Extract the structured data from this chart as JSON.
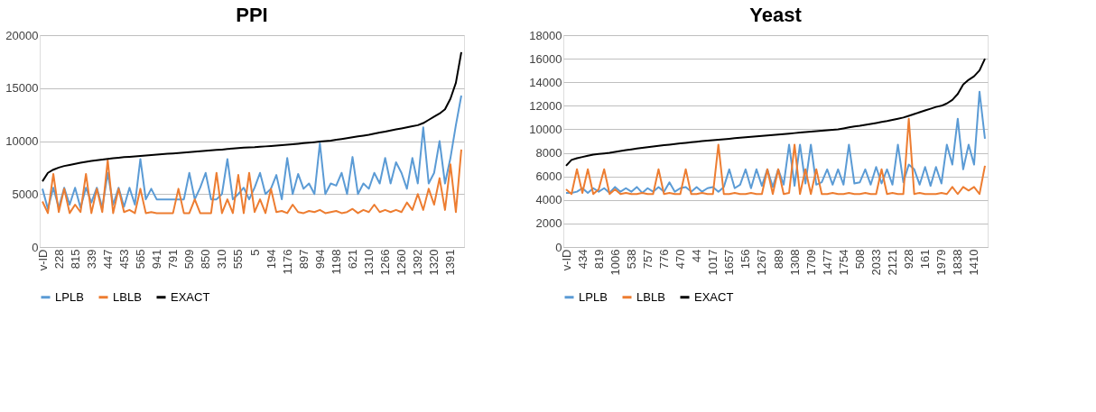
{
  "chart_data": [
    {
      "type": "line",
      "title": "PPI",
      "ylim": [
        0,
        20000
      ],
      "yticks": [
        0,
        5000,
        10000,
        15000,
        20000
      ],
      "grid": "y",
      "legend": "bottom",
      "categories": [
        "v-ID",
        null,
        null,
        "228",
        null,
        null,
        "815",
        null,
        null,
        "339",
        null,
        null,
        "447",
        null,
        null,
        "453",
        null,
        null,
        "565",
        null,
        null,
        "941",
        null,
        null,
        "791",
        null,
        null,
        "509",
        null,
        null,
        "850",
        null,
        null,
        "310",
        null,
        null,
        "555",
        null,
        null,
        "5",
        null,
        null,
        "194",
        null,
        null,
        "1176",
        null,
        null,
        "897",
        null,
        null,
        "994",
        null,
        null,
        "1198",
        null,
        null,
        "621",
        null,
        null,
        "1310",
        null,
        null,
        "1266",
        null,
        null,
        "1260",
        null,
        null,
        "1392",
        null,
        null,
        "1320",
        null,
        null,
        "1391",
        null,
        null
      ],
      "series": [
        {
          "name": "LPLB",
          "color": "#5b9bd5",
          "values": [
            5500,
            3600,
            5600,
            3700,
            5600,
            4000,
            5600,
            3700,
            5600,
            4200,
            5600,
            3700,
            7000,
            4000,
            5600,
            3800,
            5600,
            4000,
            8300,
            4500,
            5500,
            4500,
            4500,
            4500,
            4500,
            4500,
            4500,
            7000,
            4500,
            5600,
            7000,
            4500,
            4500,
            5000,
            8300,
            4500,
            5000,
            5600,
            4500,
            5600,
            7000,
            5000,
            5500,
            6800,
            4500,
            8400,
            5000,
            6900,
            5500,
            6000,
            5000,
            9800,
            5000,
            6000,
            5800,
            7000,
            5000,
            8500,
            5000,
            6000,
            5500,
            7000,
            6000,
            8400,
            6000,
            8000,
            7000,
            5500,
            8400,
            6000,
            11300,
            6000,
            7000,
            10000,
            6000,
            8400,
            11500,
            14300
          ]
        },
        {
          "name": "LBLB",
          "color": "#ed7d31",
          "values": [
            4300,
            3200,
            6900,
            3300,
            5500,
            3200,
            4000,
            3300,
            6900,
            3200,
            5500,
            3300,
            8200,
            3200,
            5500,
            3300,
            3500,
            3200,
            5500,
            3200,
            3300,
            3200,
            3200,
            3200,
            3200,
            5500,
            3200,
            3200,
            4500,
            3200,
            3200,
            3200,
            7000,
            3200,
            4500,
            3200,
            6800,
            3200,
            7000,
            3300,
            4500,
            3200,
            5500,
            3300,
            3400,
            3200,
            4000,
            3300,
            3200,
            3400,
            3300,
            3500,
            3200,
            3300,
            3400,
            3200,
            3300,
            3600,
            3200,
            3500,
            3300,
            4000,
            3300,
            3500,
            3300,
            3500,
            3300,
            4200,
            3500,
            5000,
            3500,
            5500,
            4000,
            6500,
            3500,
            7800,
            3300,
            9200
          ]
        },
        {
          "name": "EXACT",
          "color": "#000000",
          "values": [
            6200,
            7000,
            7300,
            7500,
            7650,
            7750,
            7850,
            7950,
            8050,
            8120,
            8200,
            8260,
            8320,
            8380,
            8430,
            8480,
            8520,
            8560,
            8600,
            8640,
            8680,
            8720,
            8760,
            8800,
            8840,
            8880,
            8920,
            8960,
            9000,
            9040,
            9080,
            9120,
            9160,
            9200,
            9250,
            9300,
            9350,
            9380,
            9400,
            9420,
            9460,
            9500,
            9540,
            9580,
            9620,
            9660,
            9700,
            9750,
            9800,
            9850,
            9900,
            9950,
            10000,
            10050,
            10120,
            10200,
            10280,
            10360,
            10440,
            10520,
            10600,
            10700,
            10800,
            10900,
            11000,
            11100,
            11200,
            11300,
            11400,
            11500,
            11700,
            12000,
            12300,
            12600,
            13000,
            14000,
            15500,
            18400
          ]
        }
      ]
    },
    {
      "type": "line",
      "title": "Yeast",
      "ylim": [
        0,
        18000
      ],
      "yticks": [
        0,
        2000,
        4000,
        6000,
        8000,
        10000,
        12000,
        14000,
        16000,
        18000
      ],
      "grid": "y",
      "legend": "bottom",
      "categories": [
        "v-ID",
        null,
        null,
        "434",
        null,
        null,
        "819",
        null,
        null,
        "1006",
        null,
        null,
        "538",
        null,
        null,
        "757",
        null,
        null,
        "776",
        null,
        null,
        "470",
        null,
        null,
        "44",
        null,
        null,
        "1017",
        null,
        null,
        "1657",
        null,
        null,
        "156",
        null,
        null,
        "1267",
        null,
        null,
        "889",
        null,
        null,
        "1308",
        null,
        null,
        "1709",
        null,
        null,
        "1477",
        null,
        null,
        "1754",
        null,
        null,
        "508",
        null,
        null,
        "2033",
        null,
        null,
        "2121",
        null,
        null,
        "928",
        null,
        null,
        "161",
        null,
        null,
        "1979",
        null,
        null,
        "1838",
        null,
        null,
        "1410",
        null,
        null
      ],
      "series": [
        {
          "name": "LPLB",
          "color": "#5b9bd5",
          "values": [
            4600,
            4600,
            4700,
            5000,
            4600,
            5000,
            4700,
            5000,
            4600,
            5100,
            4700,
            5000,
            4700,
            5100,
            4600,
            5000,
            4700,
            5100,
            4700,
            5500,
            4700,
            5000,
            5100,
            4700,
            5100,
            4700,
            5000,
            5100,
            4700,
            5100,
            6600,
            5000,
            5300,
            6600,
            5000,
            6600,
            5200,
            6600,
            5100,
            6600,
            5300,
            8700,
            5200,
            8700,
            5400,
            8700,
            5300,
            5500,
            6600,
            5300,
            6600,
            5300,
            8700,
            5400,
            5500,
            6600,
            5300,
            6800,
            5400,
            6600,
            5300,
            8700,
            5500,
            7000,
            6600,
            5300,
            6800,
            5200,
            6800,
            5400,
            8700,
            7000,
            10900,
            6600,
            8700,
            7000,
            13200,
            9200
          ]
        },
        {
          "name": "LBLB",
          "color": "#ed7d31",
          "values": [
            4900,
            4500,
            6600,
            4600,
            6600,
            4500,
            4900,
            6600,
            4500,
            4900,
            4500,
            4600,
            4500,
            4500,
            4600,
            4500,
            4500,
            6600,
            4500,
            4600,
            4500,
            4500,
            6600,
            4500,
            4500,
            4600,
            4500,
            4500,
            8700,
            4500,
            4500,
            4600,
            4500,
            4500,
            4600,
            4500,
            4500,
            6600,
            4500,
            6600,
            4500,
            4600,
            8700,
            4500,
            6600,
            4500,
            6600,
            4500,
            4500,
            4600,
            4500,
            4500,
            4600,
            4500,
            4500,
            4600,
            4500,
            4500,
            6600,
            4500,
            4600,
            4500,
            4500,
            10900,
            4500,
            4600,
            4500,
            4500,
            4500,
            4600,
            4500,
            5100,
            4500,
            5100,
            4800,
            5100,
            4500,
            6900
          ]
        },
        {
          "name": "EXACT",
          "color": "#000000",
          "values": [
            6900,
            7400,
            7550,
            7650,
            7750,
            7850,
            7900,
            7950,
            8000,
            8080,
            8160,
            8240,
            8300,
            8360,
            8420,
            8480,
            8540,
            8600,
            8650,
            8700,
            8750,
            8800,
            8850,
            8900,
            8950,
            9000,
            9040,
            9080,
            9120,
            9160,
            9200,
            9240,
            9280,
            9320,
            9360,
            9400,
            9440,
            9480,
            9520,
            9560,
            9600,
            9640,
            9680,
            9720,
            9760,
            9800,
            9840,
            9880,
            9920,
            9960,
            10000,
            10080,
            10160,
            10240,
            10300,
            10380,
            10460,
            10540,
            10620,
            10700,
            10800,
            10900,
            11000,
            11150,
            11300,
            11450,
            11600,
            11750,
            11900,
            12000,
            12200,
            12500,
            13000,
            13800,
            14200,
            14500,
            15000,
            16000
          ]
        }
      ]
    }
  ]
}
